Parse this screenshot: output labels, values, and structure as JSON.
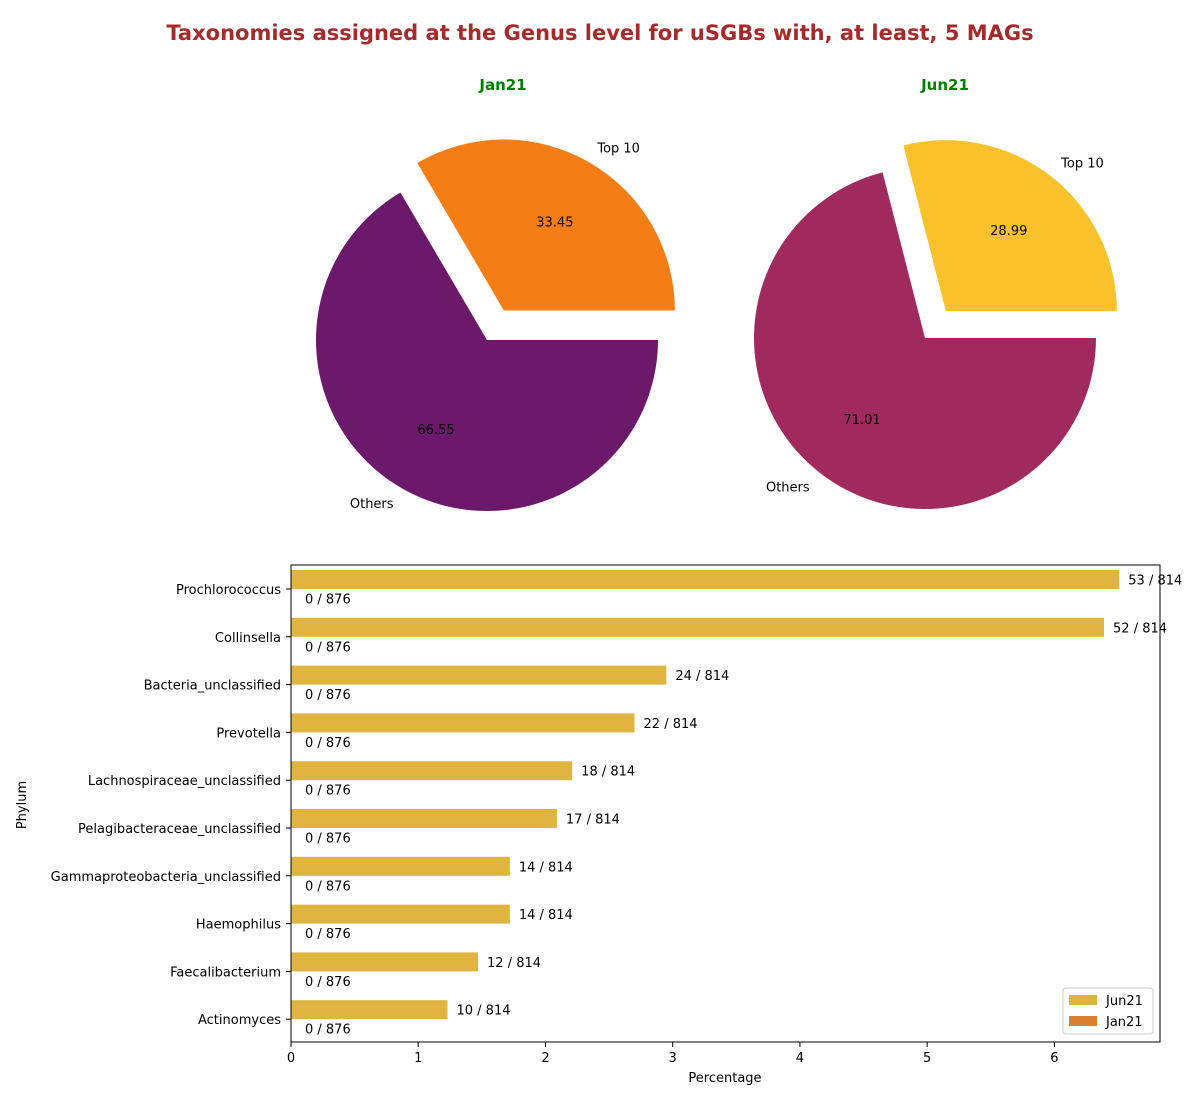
{
  "title": "Taxonomies assigned at the Genus level for uSGBs with, at least, 5 MAGs",
  "colors": {
    "title": "#a52a2a",
    "subtitle": "#008000",
    "jan_top": "#f47d15",
    "jan_others": "#6c186b",
    "jun_top": "#f9c12a",
    "jun_others": "#a0295d",
    "bar_jun": "#e0b53f",
    "bar_jan": "#d97f2e"
  },
  "chart_data": [
    {
      "type": "pie",
      "title": "Jan21",
      "labels": [
        "Top 10",
        "Others"
      ],
      "values": [
        33.45,
        66.55
      ],
      "value_labels": [
        "33.45",
        "66.55"
      ],
      "exploded": "Top 10"
    },
    {
      "type": "pie",
      "title": "Jun21",
      "labels": [
        "Top 10",
        "Others"
      ],
      "values": [
        28.99,
        71.01
      ],
      "value_labels": [
        "28.99",
        "71.01"
      ],
      "exploded": "Top 10"
    },
    {
      "type": "bar",
      "orientation": "horizontal",
      "xlabel": "Percentage",
      "ylabel": "Phylum",
      "xlim": [
        0,
        6.83
      ],
      "xticks": [
        "0",
        "1",
        "2",
        "3",
        "4",
        "5",
        "6"
      ],
      "legend_placement": "lower-right",
      "categories": [
        "Prochlorococcus",
        "Collinsella",
        "Bacteria_unclassified",
        "Prevotella",
        "Lachnospiraceae_unclassified",
        "Pelagibacteraceae_unclassified",
        "Gammaproteobacteria_unclassified",
        "Haemophilus",
        "Faecalibacterium",
        "Actinomyces"
      ],
      "series": [
        {
          "name": "Jun21",
          "values": [
            6.51,
            6.39,
            2.95,
            2.7,
            2.21,
            2.09,
            1.72,
            1.72,
            1.47,
            1.23
          ],
          "labels": [
            "53 / 814",
            "52 / 814",
            "24 / 814",
            "22 / 814",
            "18 / 814",
            "17 / 814",
            "14 / 814",
            "14 / 814",
            "12 / 814",
            "10 / 814"
          ]
        },
        {
          "name": "Jan21",
          "values": [
            0,
            0,
            0,
            0,
            0,
            0,
            0,
            0,
            0,
            0
          ],
          "labels": [
            "0 / 876",
            "0 / 876",
            "0 / 876",
            "0 / 876",
            "0 / 876",
            "0 / 876",
            "0 / 876",
            "0 / 876",
            "0 / 876",
            "0 / 876"
          ]
        }
      ]
    }
  ]
}
